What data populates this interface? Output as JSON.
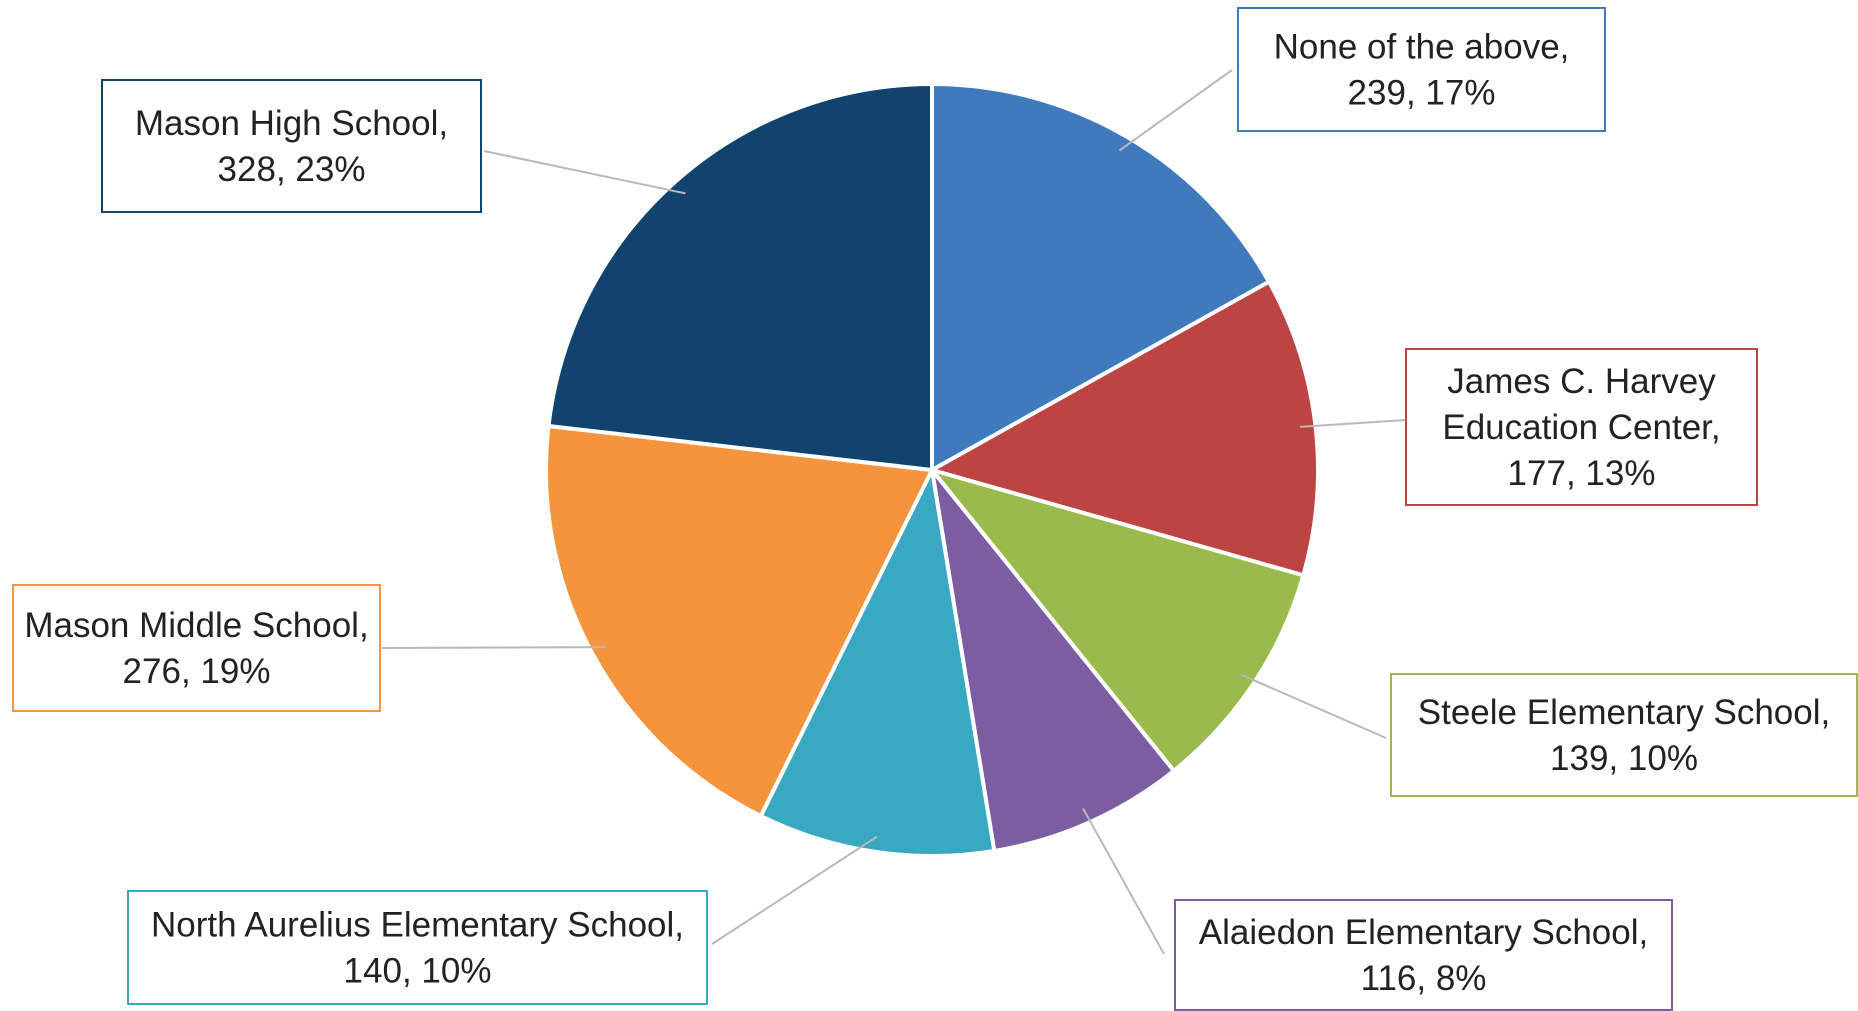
{
  "chart_data": {
    "type": "pie",
    "title": "",
    "start_angle_deg": 0,
    "direction": "clockwise",
    "slices": [
      {
        "category": "None of the above",
        "value": 239,
        "percent": "17%",
        "label_lines": [
          "None of the above,",
          "239, 17%"
        ],
        "color": "#3F7BBC"
      },
      {
        "category": "James C. Harvey Education Center",
        "value": 177,
        "percent": "13%",
        "label_lines": [
          "James C. Harvey",
          "Education Center,",
          "177, 13%"
        ],
        "color": "#BC4442"
      },
      {
        "category": "Steele Elementary School",
        "value": 139,
        "percent": "10%",
        "label_lines": [
          "Steele Elementary School,",
          "139, 10%"
        ],
        "color": "#98BB4C"
      },
      {
        "category": "Alaiedon Elementary School",
        "value": 116,
        "percent": "8%",
        "label_lines": [
          "Alaiedon Elementary School,",
          "116, 8%"
        ],
        "color": "#7D5DA2"
      },
      {
        "category": "North Aurelius Elementary School",
        "value": 140,
        "percent": "10%",
        "label_lines": [
          "North Aurelius Elementary School,",
          "140, 10%"
        ],
        "color": "#38A8C3"
      },
      {
        "category": "Mason Middle School",
        "value": 276,
        "percent": "19%",
        "label_lines": [
          "Mason Middle School,",
          "276, 19%"
        ],
        "color": "#F4943C"
      },
      {
        "category": "Mason High School",
        "value": 328,
        "percent": "23%",
        "label_lines": [
          "Mason High School,",
          "328, 23%"
        ],
        "color": "#10436E"
      }
    ]
  }
}
